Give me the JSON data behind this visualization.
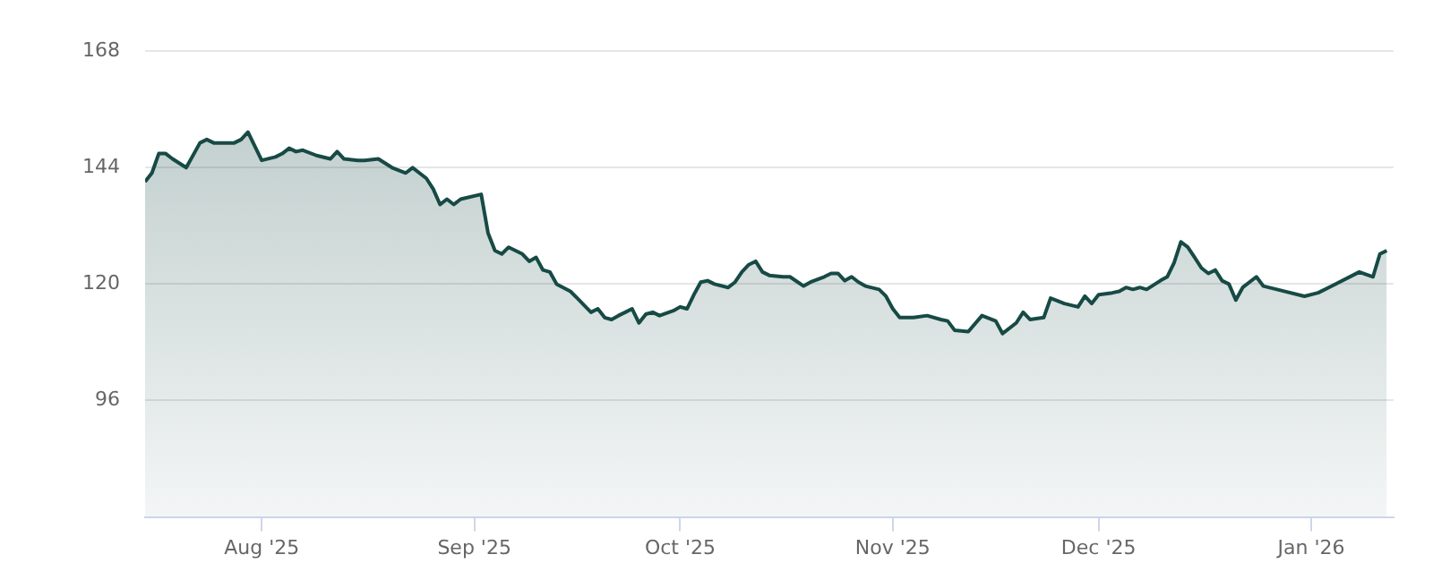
{
  "chart_data": {
    "type": "area",
    "x": [
      "2025-07-15",
      "2025-07-16",
      "2025-07-17",
      "2025-07-18",
      "2025-07-19",
      "2025-07-21",
      "2025-07-23",
      "2025-07-24",
      "2025-07-25",
      "2025-07-28",
      "2025-07-29",
      "2025-07-30",
      "2025-08-01",
      "2025-08-03",
      "2025-08-04",
      "2025-08-05",
      "2025-08-06",
      "2025-08-07",
      "2025-08-09",
      "2025-08-11",
      "2025-08-12",
      "2025-08-13",
      "2025-08-15",
      "2025-08-16",
      "2025-08-18",
      "2025-08-20",
      "2025-08-22",
      "2025-08-23",
      "2025-08-25",
      "2025-08-26",
      "2025-08-27",
      "2025-08-28",
      "2025-08-29",
      "2025-08-30",
      "2025-09-02",
      "2025-09-03",
      "2025-09-04",
      "2025-09-05",
      "2025-09-06",
      "2025-09-08",
      "2025-09-09",
      "2025-09-10",
      "2025-09-11",
      "2025-09-12",
      "2025-09-13",
      "2025-09-15",
      "2025-09-16",
      "2025-09-18",
      "2025-09-19",
      "2025-09-20",
      "2025-09-21",
      "2025-09-22",
      "2025-09-23",
      "2025-09-24",
      "2025-09-25",
      "2025-09-26",
      "2025-09-27",
      "2025-09-28",
      "2025-09-30",
      "2025-10-01",
      "2025-10-02",
      "2025-10-03",
      "2025-10-04",
      "2025-10-05",
      "2025-10-06",
      "2025-10-08",
      "2025-10-09",
      "2025-10-10",
      "2025-10-11",
      "2025-10-12",
      "2025-10-13",
      "2025-10-14",
      "2025-10-16",
      "2025-10-17",
      "2025-10-19",
      "2025-10-20",
      "2025-10-22",
      "2025-10-23",
      "2025-10-24",
      "2025-10-25",
      "2025-10-26",
      "2025-10-27",
      "2025-10-28",
      "2025-10-30",
      "2025-10-31",
      "2025-11-01",
      "2025-11-02",
      "2025-11-04",
      "2025-11-06",
      "2025-11-08",
      "2025-11-09",
      "2025-11-10",
      "2025-11-12",
      "2025-11-14",
      "2025-11-16",
      "2025-11-17",
      "2025-11-19",
      "2025-11-20",
      "2025-11-21",
      "2025-11-23",
      "2025-11-24",
      "2025-11-26",
      "2025-11-28",
      "2025-11-29",
      "2025-11-30",
      "2025-12-01",
      "2025-12-03",
      "2025-12-04",
      "2025-12-05",
      "2025-12-06",
      "2025-12-07",
      "2025-12-08",
      "2025-12-10",
      "2025-12-11",
      "2025-12-12",
      "2025-12-13",
      "2025-12-14",
      "2025-12-15",
      "2025-12-16",
      "2025-12-17",
      "2025-12-18",
      "2025-12-19",
      "2025-12-20",
      "2025-12-21",
      "2025-12-22",
      "2025-12-24",
      "2025-12-25",
      "2025-12-27",
      "2025-12-31",
      "2026-01-02",
      "2026-01-04",
      "2026-01-08",
      "2026-01-10",
      "2026-01-11",
      "2026-01-12"
    ],
    "series": [
      {
        "color": "#174a45",
        "values": [
          141.1,
          142.9,
          146.9,
          146.9,
          145.8,
          144.0,
          149.1,
          149.8,
          149.1,
          149.1,
          149.8,
          151.3,
          145.5,
          146.2,
          146.9,
          148.0,
          147.3,
          147.6,
          146.5,
          145.8,
          147.3,
          145.8,
          145.5,
          145.5,
          145.8,
          144.0,
          142.9,
          144.0,
          141.8,
          139.6,
          136.4,
          137.5,
          136.4,
          137.5,
          138.5,
          130.5,
          126.9,
          126.2,
          127.6,
          126.2,
          124.7,
          125.5,
          122.9,
          122.5,
          120.0,
          118.5,
          117.1,
          114.2,
          114.9,
          113.1,
          112.7,
          113.5,
          114.2,
          114.9,
          112.0,
          113.8,
          114.2,
          113.5,
          114.5,
          115.3,
          114.9,
          117.8,
          120.4,
          120.7,
          120.0,
          119.3,
          120.4,
          122.5,
          124.0,
          124.7,
          122.5,
          121.8,
          121.5,
          121.5,
          119.6,
          120.4,
          121.5,
          122.2,
          122.2,
          120.7,
          121.5,
          120.4,
          119.6,
          118.9,
          117.5,
          114.9,
          113.1,
          113.1,
          113.5,
          112.7,
          112.4,
          110.5,
          110.2,
          113.5,
          112.4,
          109.8,
          112.0,
          114.2,
          112.7,
          113.1,
          117.1,
          116.0,
          115.3,
          117.5,
          116.0,
          117.8,
          118.2,
          118.5,
          119.3,
          118.9,
          119.3,
          118.9,
          120.7,
          121.5,
          124.4,
          128.7,
          127.6,
          125.5,
          123.3,
          122.2,
          122.9,
          120.7,
          120.0,
          116.7,
          119.3,
          121.5,
          119.6,
          118.9,
          117.5,
          118.2,
          119.6,
          122.5,
          121.5,
          126.2,
          126.9
        ]
      }
    ],
    "xlim": [
      "2025-07-15",
      "2026-01-13"
    ],
    "xticks": [
      {
        "value": "2025-08-01",
        "label": "Aug '25"
      },
      {
        "value": "2025-09-01",
        "label": "Sep '25"
      },
      {
        "value": "2025-10-01",
        "label": "Oct '25"
      },
      {
        "value": "2025-11-01",
        "label": "Nov '25"
      },
      {
        "value": "2025-12-01",
        "label": "Dec '25"
      },
      {
        "value": "2026-01-01",
        "label": "Jan '26"
      }
    ],
    "ylim": [
      72,
      168
    ],
    "yticks": [
      96,
      120,
      144,
      168
    ],
    "grid": "y",
    "legend": false,
    "marker": "none"
  }
}
